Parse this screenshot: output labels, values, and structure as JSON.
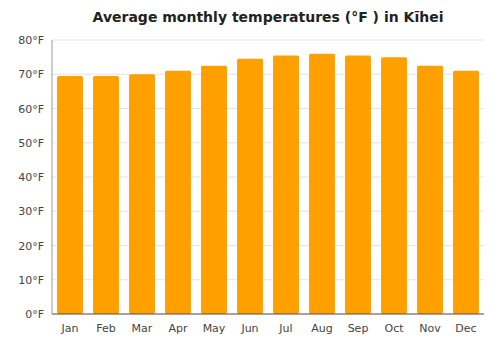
{
  "chart_data": {
    "type": "bar",
    "title": "Average monthly temperatures (°F ) in Kīhei",
    "categories": [
      "Jan",
      "Feb",
      "Mar",
      "Apr",
      "May",
      "Jun",
      "Jul",
      "Aug",
      "Sep",
      "Oct",
      "Nov",
      "Dec"
    ],
    "values": [
      69.5,
      69.5,
      70.0,
      71.0,
      72.5,
      74.5,
      75.5,
      76.0,
      75.5,
      75.0,
      72.5,
      71.0
    ],
    "color": "#FFA000",
    "ylim": [
      0,
      80
    ],
    "yticks": [
      {
        "value": 0,
        "label": "0°F"
      },
      {
        "value": 10,
        "label": "10°F"
      },
      {
        "value": 20,
        "label": "20°F"
      },
      {
        "value": 30,
        "label": "30°F"
      },
      {
        "value": 40,
        "label": "40°F"
      },
      {
        "value": 50,
        "label": "50°F"
      },
      {
        "value": 60,
        "label": "60°F"
      },
      {
        "value": 70,
        "label": "70°F"
      },
      {
        "value": 80,
        "label": "80°F"
      }
    ],
    "grid": true
  }
}
